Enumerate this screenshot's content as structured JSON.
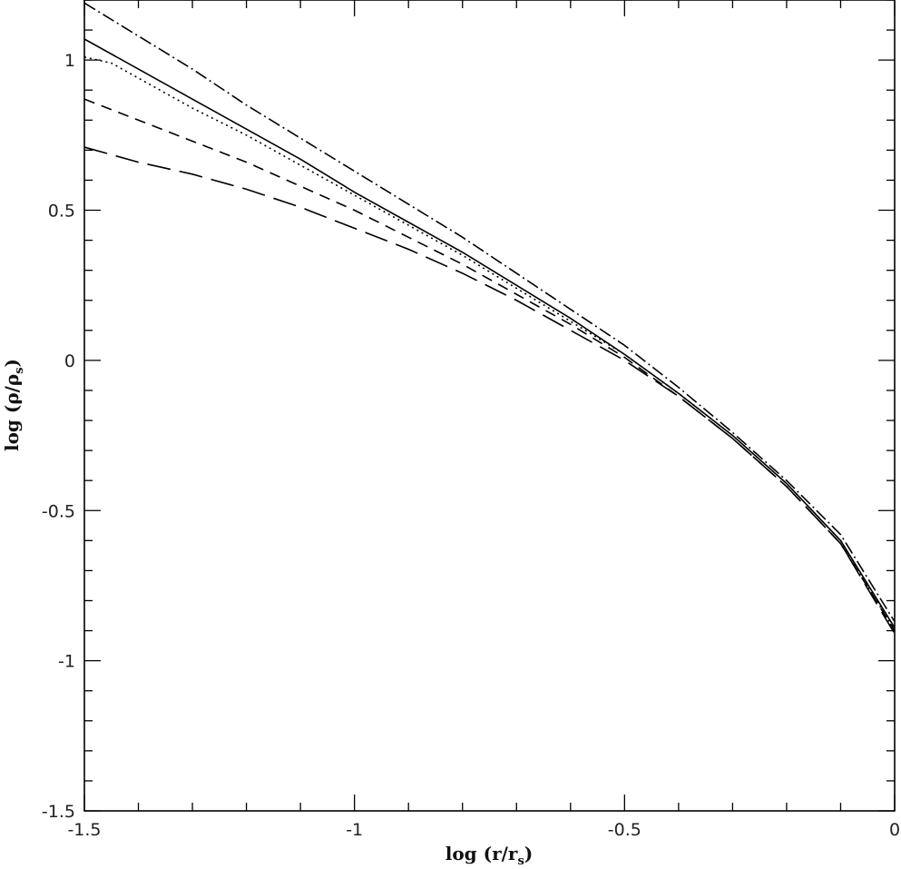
{
  "chart_data": {
    "type": "line",
    "title": "",
    "xlabel": {
      "prefix": "log  (r/r",
      "sub": "s",
      "suffix": ")"
    },
    "ylabel": {
      "prefix": "log  (ρ/ρ",
      "sub": "s",
      "suffix": ")"
    },
    "xlim": [
      -1.5,
      0
    ],
    "ylim": [
      -1.5,
      1.2
    ],
    "xticks": [
      -1.5,
      -1,
      -0.5,
      0
    ],
    "xtick_labels": [
      "-1.5",
      "-1",
      "-0.5",
      "0"
    ],
    "yticks": [
      -1.5,
      -1,
      -0.5,
      0,
      0.5,
      1
    ],
    "ytick_labels": [
      "-1.5",
      "-1",
      "-0.5",
      "0",
      "0.5",
      "1"
    ],
    "x_minor_step": 0.1,
    "y_minor_step": 0.1,
    "grid": false,
    "series": [
      {
        "style": "dash-dot",
        "color": "#000000",
        "x": [
          -1.5,
          -1.4,
          -1.3,
          -1.2,
          -1.1,
          -1.0,
          -0.9,
          -0.8,
          -0.7,
          -0.6,
          -0.5,
          -0.4,
          -0.3,
          -0.2,
          -0.1,
          0.0
        ],
        "y": [
          1.19,
          1.08,
          0.97,
          0.85,
          0.74,
          0.63,
          0.52,
          0.41,
          0.29,
          0.17,
          0.05,
          -0.09,
          -0.24,
          -0.4,
          -0.58,
          -0.87
        ]
      },
      {
        "style": "solid",
        "color": "#000000",
        "x": [
          -1.5,
          -1.4,
          -1.3,
          -1.2,
          -1.1,
          -1.0,
          -0.9,
          -0.8,
          -0.7,
          -0.6,
          -0.5,
          -0.4,
          -0.3,
          -0.2,
          -0.1,
          0.0
        ],
        "y": [
          1.07,
          0.97,
          0.87,
          0.77,
          0.67,
          0.56,
          0.46,
          0.36,
          0.25,
          0.14,
          0.02,
          -0.11,
          -0.25,
          -0.41,
          -0.6,
          -0.89
        ]
      },
      {
        "style": "dotted",
        "color": "#000000",
        "x": [
          -1.5,
          -1.45,
          -1.4,
          -1.3,
          -1.2,
          -1.1,
          -1.0,
          -0.9,
          -0.8,
          -0.7,
          -0.6,
          -0.5,
          -0.4,
          -0.3,
          -0.2,
          -0.1,
          0.0
        ],
        "y": [
          1.01,
          0.99,
          0.94,
          0.84,
          0.75,
          0.65,
          0.55,
          0.45,
          0.35,
          0.24,
          0.13,
          0.02,
          -0.11,
          -0.25,
          -0.41,
          -0.6,
          -0.9
        ]
      },
      {
        "style": "dashed",
        "color": "#000000",
        "x": [
          -1.5,
          -1.4,
          -1.3,
          -1.2,
          -1.1,
          -1.0,
          -0.9,
          -0.8,
          -0.7,
          -0.6,
          -0.5,
          -0.4,
          -0.3,
          -0.2,
          -0.1,
          0.0
        ],
        "y": [
          0.87,
          0.8,
          0.73,
          0.66,
          0.58,
          0.5,
          0.41,
          0.32,
          0.22,
          0.12,
          0.01,
          -0.12,
          -0.26,
          -0.42,
          -0.61,
          -0.9
        ]
      },
      {
        "style": "long-dashed",
        "color": "#000000",
        "x": [
          -1.5,
          -1.4,
          -1.3,
          -1.2,
          -1.1,
          -1.0,
          -0.9,
          -0.8,
          -0.7,
          -0.6,
          -0.5,
          -0.4,
          -0.3,
          -0.2,
          -0.1,
          0.0
        ],
        "y": [
          0.71,
          0.66,
          0.62,
          0.57,
          0.51,
          0.44,
          0.37,
          0.29,
          0.2,
          0.1,
          0.0,
          -0.12,
          -0.26,
          -0.42,
          -0.61,
          -0.91
        ]
      }
    ]
  }
}
